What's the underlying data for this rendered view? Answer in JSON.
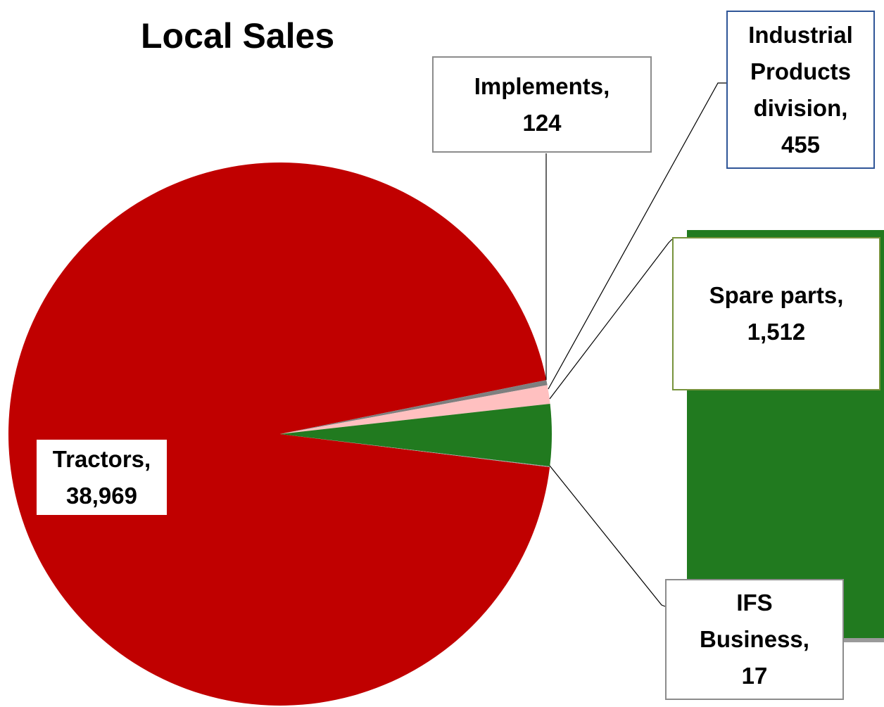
{
  "chart_data": {
    "type": "pie",
    "title": "Local Sales",
    "categories": [
      "Tractors",
      "Implements",
      "Industrial Products division",
      "Spare parts",
      "IFS Business"
    ],
    "values": [
      38969,
      124,
      455,
      1512,
      17
    ],
    "value_labels": [
      "38,969",
      "124",
      "455",
      "1,512",
      "17"
    ],
    "label_separator": ",",
    "colors": [
      "#c00000",
      "#7f7f7f",
      "#ffc0c0",
      "#217a1f",
      "#a5a5a5"
    ]
  }
}
